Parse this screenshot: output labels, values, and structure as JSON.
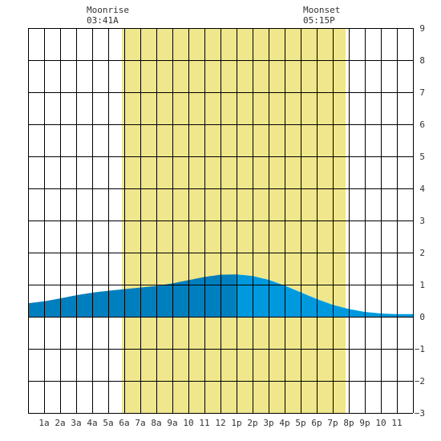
{
  "moonrise": {
    "label": "Moonrise",
    "time": "03:41A"
  },
  "moonset": {
    "label": "Moonset",
    "time": "05:15P"
  },
  "chart_data": {
    "type": "area",
    "title": "",
    "xlabel": "",
    "ylabel": "",
    "xlim": [
      0,
      24
    ],
    "ylim": [
      -3,
      9
    ],
    "grid": true,
    "y_ticks": [
      9,
      8,
      7,
      6,
      5,
      4,
      3,
      2,
      1,
      0,
      -1,
      -2,
      -3
    ],
    "x_tick_labels": [
      "1a",
      "2a",
      "3a",
      "4a",
      "5a",
      "6a",
      "7a",
      "8a",
      "9a",
      "10",
      "11",
      "12",
      "1p",
      "2p",
      "3p",
      "4p",
      "5p",
      "6p",
      "7p",
      "8p",
      "9p",
      "10",
      "11"
    ],
    "daylight_band": {
      "start_hour": 5.85,
      "end_hour": 19.8
    },
    "current_time_hour": 12.95,
    "colors": {
      "daylight": "#f0e68c",
      "tide_past": "#007fbf",
      "tide_future": "#0099dd",
      "grid": "#000000",
      "background": "#ffffff"
    },
    "tide": {
      "x": [
        0,
        1,
        2,
        3,
        4,
        5,
        6,
        7,
        8,
        9,
        10,
        11,
        12,
        13,
        14,
        15,
        16,
        17,
        18,
        19,
        20,
        21,
        22,
        23,
        24
      ],
      "y": [
        0.42,
        0.48,
        0.57,
        0.67,
        0.75,
        0.81,
        0.86,
        0.91,
        0.96,
        1.04,
        1.14,
        1.24,
        1.31,
        1.32,
        1.27,
        1.15,
        0.97,
        0.76,
        0.55,
        0.37,
        0.24,
        0.15,
        0.1,
        0.08,
        0.08
      ]
    }
  }
}
